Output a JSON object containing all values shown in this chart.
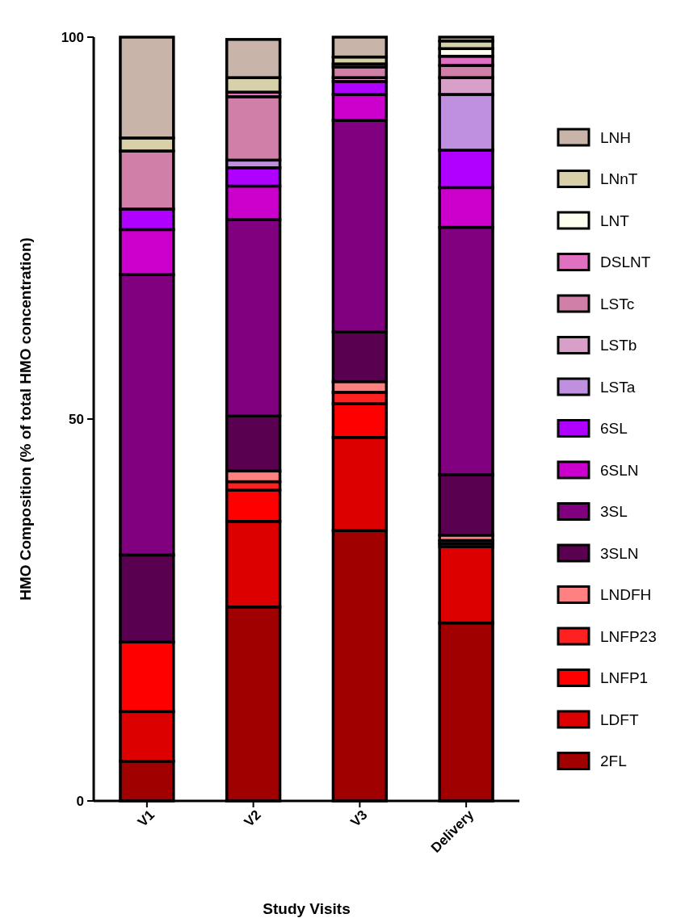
{
  "chart_data": {
    "type": "bar",
    "stacked": true,
    "xlabel": "Study Visits",
    "ylabel": "HMO Composition (% of total HMO concentration)",
    "categories": [
      "V1",
      "V2",
      "V3",
      "Delivery"
    ],
    "ylim": [
      0,
      100
    ],
    "yticks": [
      0,
      50,
      100
    ],
    "legend": "right",
    "grid": false,
    "series": [
      {
        "name": "2FL",
        "color": "#a00000",
        "values": [
          5.2,
          25.4,
          35.4,
          23.3
        ]
      },
      {
        "name": "LDFT",
        "color": "#dd0000",
        "values": [
          6.5,
          11.2,
          12.2,
          10.0
        ]
      },
      {
        "name": "LNFP1",
        "color": "#ff0000",
        "values": [
          9.1,
          4.1,
          4.4,
          0.4
        ]
      },
      {
        "name": "LNFP23",
        "color": "#ff2020",
        "values": [
          0,
          1.1,
          1.5,
          0.4
        ]
      },
      {
        "name": "LNDFH",
        "color": "#ff8080",
        "values": [
          0,
          1.4,
          1.4,
          0.7
        ]
      },
      {
        "name": "3SLN",
        "color": "#5a0050",
        "values": [
          11.4,
          7.2,
          6.5,
          7.9
        ]
      },
      {
        "name": "3SL",
        "color": "#800080",
        "values": [
          36.7,
          25.7,
          27.7,
          32.4
        ]
      },
      {
        "name": "6SLN",
        "color": "#cc00cc",
        "values": [
          5.9,
          4.4,
          3.4,
          5.2
        ]
      },
      {
        "name": "6SL",
        "color": "#b000ff",
        "values": [
          2.7,
          2.4,
          1.7,
          4.9
        ]
      },
      {
        "name": "LSTa",
        "color": "#c090e0",
        "values": [
          0,
          1.0,
          0,
          7.3
        ]
      },
      {
        "name": "LSTb",
        "color": "#d8a0c8",
        "values": [
          0,
          0,
          0.5,
          2.2
        ]
      },
      {
        "name": "LSTc",
        "color": "#d080a8",
        "values": [
          7.6,
          8.3,
          1.4,
          1.6
        ]
      },
      {
        "name": "DSLNT",
        "color": "#e070c0",
        "values": [
          0,
          0.6,
          null,
          1.2
        ]
      },
      {
        "name": "LNT",
        "color": "#fffff0",
        "values": [
          0,
          0,
          0.4,
          1.0
        ]
      },
      {
        "name": "LNnT",
        "color": "#d8d0a8",
        "values": [
          1.7,
          1.9,
          0.9,
          1.0
        ]
      },
      {
        "name": "LNH",
        "color": "#c8b4a8",
        "values": [
          13.2,
          5.0,
          2.6,
          0.5
        ]
      }
    ]
  }
}
